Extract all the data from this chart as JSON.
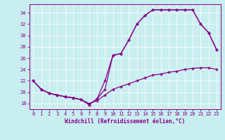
{
  "xlabel": "Windchill (Refroidissement éolien,°C)",
  "bg_color": "#c8eef0",
  "line_color": "#880088",
  "ylim": [
    17.0,
    35.5
  ],
  "xlim": [
    -0.5,
    23.5
  ],
  "yticks": [
    18,
    20,
    22,
    24,
    26,
    28,
    30,
    32,
    34
  ],
  "xticks": [
    0,
    1,
    2,
    3,
    4,
    5,
    6,
    7,
    8,
    9,
    10,
    11,
    12,
    13,
    14,
    15,
    16,
    17,
    18,
    19,
    20,
    21,
    22,
    23
  ],
  "line1_x": [
    0,
    1,
    2,
    3,
    4,
    5,
    6,
    7,
    8,
    9,
    10,
    11,
    12,
    13,
    14,
    15,
    16,
    17,
    18,
    19,
    20,
    21,
    22,
    23
  ],
  "line1_y": [
    22,
    20.5,
    19.8,
    19.5,
    19.2,
    19.0,
    18.7,
    18.0,
    18.5,
    19.5,
    20.5,
    21.0,
    21.5,
    22.0,
    22.5,
    23.0,
    23.2,
    23.5,
    23.7,
    24.0,
    24.2,
    24.3,
    24.3,
    24.0
  ],
  "line2_x": [
    0,
    1,
    2,
    3,
    4,
    5,
    6,
    7,
    8,
    9,
    10,
    11,
    12,
    13,
    14,
    15,
    16,
    17,
    18,
    19,
    20,
    21,
    22,
    23
  ],
  "line2_y": [
    22,
    20.5,
    19.8,
    19.5,
    19.2,
    19.0,
    18.7,
    17.8,
    18.8,
    20.5,
    26.5,
    26.8,
    29.2,
    32.0,
    33.5,
    34.5,
    34.5,
    34.5,
    34.5,
    34.5,
    34.5,
    32.0,
    30.5,
    27.5
  ],
  "line3_x": [
    0,
    1,
    2,
    3,
    4,
    5,
    6,
    7,
    8,
    9,
    10,
    11,
    12,
    13,
    14,
    15,
    16,
    17,
    18,
    19,
    20,
    21,
    22,
    23
  ],
  "line3_y": [
    22,
    20.5,
    19.8,
    19.5,
    19.2,
    19.0,
    18.7,
    17.8,
    18.8,
    22.0,
    26.5,
    26.8,
    29.2,
    32.0,
    33.5,
    34.5,
    34.5,
    34.5,
    34.5,
    34.5,
    34.5,
    32.0,
    30.5,
    27.5
  ]
}
